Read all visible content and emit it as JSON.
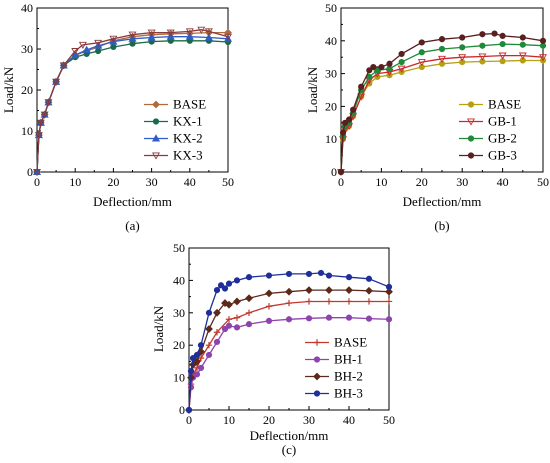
{
  "chart_data": [
    {
      "type": "line",
      "panel_label": "(a)",
      "xlabel": "Deflection/mm",
      "ylabel": "Load/kN",
      "xlim": [
        0,
        50
      ],
      "ylim": [
        0,
        40
      ],
      "xticks": [
        "0",
        "10",
        "20",
        "30",
        "40",
        "50"
      ],
      "yticks": [
        "0",
        "10",
        "20",
        "30",
        "40"
      ],
      "legend_position": "bottom-right",
      "series": [
        {
          "name": "BASE",
          "color": "#b06a3b",
          "marker": "diamond",
          "x": [
            0,
            0.5,
            1,
            2,
            3,
            5,
            7,
            10,
            13,
            16,
            20,
            25,
            30,
            35,
            40,
            45,
            50
          ],
          "y": [
            0,
            9,
            12,
            14,
            17,
            22,
            26,
            28.5,
            29.5,
            30.5,
            32,
            33,
            33.5,
            33.7,
            33.8,
            34,
            34
          ]
        },
        {
          "name": "KX-1",
          "color": "#1a6a4a",
          "marker": "circle",
          "x": [
            0,
            0.5,
            1,
            2,
            3,
            5,
            7,
            10,
            13,
            16,
            20,
            25,
            30,
            35,
            40,
            45,
            50
          ],
          "y": [
            0,
            9,
            12,
            14,
            17,
            22,
            26,
            28,
            28.8,
            29.5,
            30.5,
            31.3,
            31.8,
            32,
            32,
            32,
            31.7
          ]
        },
        {
          "name": "KX-2",
          "color": "#2e5cc8",
          "marker": "triangle",
          "x": [
            0,
            0.5,
            1,
            2,
            3,
            5,
            7,
            10,
            13,
            16,
            20,
            25,
            30,
            35,
            40,
            45,
            50
          ],
          "y": [
            0,
            9,
            12,
            14,
            17,
            22,
            26,
            28.5,
            29.8,
            30.8,
            31.8,
            32.5,
            32.8,
            33,
            33,
            32.8,
            32.5
          ]
        },
        {
          "name": "KX-3",
          "color": "#8b3a3a",
          "marker": "down-triangle",
          "x": [
            0,
            0.5,
            1,
            2,
            3,
            5,
            7,
            10,
            12,
            16,
            20,
            25,
            30,
            35,
            40,
            43,
            45,
            50
          ],
          "y": [
            0,
            9,
            12,
            14,
            17,
            22,
            26,
            29.5,
            31,
            31.5,
            32.5,
            33.5,
            34,
            34,
            34.3,
            34.7,
            34.3,
            33
          ]
        }
      ]
    },
    {
      "type": "line",
      "panel_label": "(b)",
      "xlabel": "Deflection/mm",
      "ylabel": "Load/kN",
      "xlim": [
        0,
        50
      ],
      "ylim": [
        0,
        50
      ],
      "xticks": [
        "0",
        "10",
        "20",
        "30",
        "40",
        "50"
      ],
      "yticks": [
        "0",
        "10",
        "20",
        "30",
        "40",
        "50"
      ],
      "legend_position": "bottom-right",
      "series": [
        {
          "name": "BASE",
          "color": "#b5a014",
          "marker": "circle",
          "x": [
            0,
            0.5,
            1,
            2,
            3,
            5,
            7,
            9,
            12,
            15,
            20,
            25,
            30,
            35,
            40,
            45,
            50
          ],
          "y": [
            0,
            10,
            13,
            14,
            17,
            23,
            27,
            29,
            29.5,
            30.5,
            32,
            33,
            33.5,
            33.7,
            33.8,
            34,
            34
          ]
        },
        {
          "name": "GB-1",
          "color": "#c8282a",
          "marker": "down-triangle",
          "x": [
            0,
            0.5,
            1,
            2,
            3,
            5,
            7,
            9,
            12,
            15,
            20,
            25,
            30,
            35,
            40,
            45,
            50
          ],
          "y": [
            0,
            10,
            13,
            14,
            17,
            23,
            28,
            30,
            30.5,
            31.5,
            33.5,
            34.5,
            35,
            35.2,
            35.5,
            35.5,
            35
          ]
        },
        {
          "name": "GB-2",
          "color": "#1f8a3a",
          "marker": "circle",
          "x": [
            0,
            0.5,
            1,
            2,
            3,
            5,
            7,
            9,
            12,
            15,
            20,
            25,
            30,
            35,
            40,
            45,
            50
          ],
          "y": [
            0,
            11,
            14,
            15,
            18,
            25,
            29,
            31,
            31.5,
            33.5,
            36.5,
            37.5,
            38,
            38.5,
            39,
            38.8,
            38.5
          ]
        },
        {
          "name": "GB-3",
          "color": "#5a1f1f",
          "marker": "circle",
          "x": [
            0,
            0.5,
            1,
            2,
            3,
            5,
            7,
            8,
            10,
            12,
            15,
            20,
            25,
            30,
            35,
            38,
            40,
            45,
            50
          ],
          "y": [
            0,
            12,
            15,
            16,
            19,
            26,
            31,
            32,
            32,
            33,
            36,
            39.5,
            40.5,
            41,
            42,
            42.2,
            41.5,
            41,
            40
          ]
        }
      ]
    },
    {
      "type": "line",
      "panel_label": "(c)",
      "xlabel": "Deflection/mm",
      "ylabel": "Load/kN",
      "xlim": [
        0,
        50
      ],
      "ylim": [
        0,
        50
      ],
      "xticks": [
        "0",
        "10",
        "20",
        "30",
        "40",
        "50"
      ],
      "yticks": [
        "0",
        "10",
        "20",
        "30",
        "40",
        "50"
      ],
      "legend_position": "bottom-right",
      "series": [
        {
          "name": "BASE",
          "color": "#c0392b",
          "marker": "plus",
          "x": [
            0,
            0.5,
            1,
            2,
            3,
            5,
            7,
            10,
            12,
            15,
            20,
            25,
            30,
            35,
            40,
            45,
            50
          ],
          "y": [
            0,
            8,
            11,
            13,
            16,
            20,
            24,
            28,
            28.5,
            30,
            32,
            33,
            33.5,
            33.5,
            33.5,
            33.5,
            33.5
          ]
        },
        {
          "name": "BH-1",
          "color": "#8e44ad",
          "marker": "circle",
          "x": [
            0,
            0.5,
            1,
            2,
            3,
            5,
            7,
            9,
            10,
            12,
            15,
            20,
            25,
            30,
            35,
            40,
            45,
            50
          ],
          "y": [
            0,
            7,
            10,
            11,
            13,
            17,
            21,
            25,
            26,
            25.5,
            26.5,
            27.5,
            28,
            28.3,
            28.5,
            28.5,
            28.2,
            28
          ]
        },
        {
          "name": "BH-2",
          "color": "#5b2a1a",
          "marker": "diamond",
          "x": [
            0,
            0.5,
            1,
            2,
            3,
            5,
            7,
            9,
            10,
            12,
            15,
            20,
            25,
            30,
            35,
            40,
            45,
            50
          ],
          "y": [
            0,
            10,
            14,
            15,
            18,
            25,
            30,
            33,
            32.5,
            33.5,
            34.5,
            36,
            36.5,
            37,
            37,
            37,
            36.8,
            36.5
          ]
        },
        {
          "name": "BH-3",
          "color": "#1f2f9a",
          "marker": "circle",
          "x": [
            0,
            0.5,
            1,
            2,
            3,
            5,
            7,
            8,
            9,
            10,
            12,
            15,
            20,
            25,
            30,
            33,
            35,
            40,
            45,
            50
          ],
          "y": [
            0,
            12,
            16,
            17,
            20,
            30,
            37,
            38.5,
            37.5,
            39,
            40,
            41,
            41.5,
            42,
            42,
            42.3,
            41.5,
            41,
            40.5,
            38
          ]
        }
      ]
    }
  ]
}
